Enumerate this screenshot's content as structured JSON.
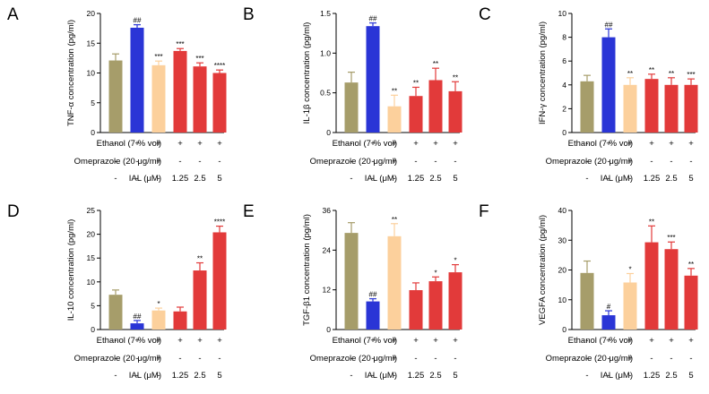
{
  "colors": {
    "bar": [
      "#a69d6a",
      "#2a35d6",
      "#fcd09c",
      "#e23a3a",
      "#e23a3a",
      "#e23a3a"
    ],
    "error_bar": [
      "#a69d6a",
      "#2a35d6",
      "#fcd09c",
      "#e23a3a",
      "#e23a3a",
      "#e23a3a"
    ],
    "axis": "#000000"
  },
  "treatment_table": {
    "rows": [
      {
        "label": "Ethanol (7 % vol)",
        "values": [
          "-",
          "+",
          "+",
          "+",
          "+",
          "+"
        ]
      },
      {
        "label": "Omeprazole (20 μg/ml)",
        "values": [
          "-",
          "-",
          "+",
          "-",
          "-",
          "-"
        ]
      },
      {
        "label": "IAL (μM)",
        "values": [
          "-",
          "-",
          "-",
          "1.25",
          "2.5",
          "5"
        ]
      }
    ]
  },
  "chart_data": [
    {
      "letter": "A",
      "type": "bar",
      "ylabel": "TNF-α concentration (pg/ml)",
      "ylim": [
        0,
        20
      ],
      "yticks": [
        0,
        5,
        10,
        15,
        20
      ],
      "ytick_labels": [
        "0",
        "5",
        "10",
        "15",
        "20"
      ],
      "values": [
        12.1,
        17.6,
        11.3,
        13.7,
        11.1,
        10.0
      ],
      "errors": [
        1.1,
        0.5,
        0.7,
        0.4,
        0.6,
        0.5
      ],
      "significance": [
        "",
        "##",
        "***",
        "***",
        "***",
        "****"
      ]
    },
    {
      "letter": "B",
      "type": "bar",
      "ylabel": "IL-1β concentration (pg/ml)",
      "ylim": [
        0,
        1.5
      ],
      "yticks": [
        0,
        0.5,
        1.0,
        1.5
      ],
      "ytick_labels": [
        "0",
        "0.5",
        "1.0",
        "1.5"
      ],
      "values": [
        0.63,
        1.34,
        0.33,
        0.46,
        0.66,
        0.52
      ],
      "errors": [
        0.13,
        0.04,
        0.14,
        0.11,
        0.15,
        0.12
      ],
      "significance": [
        "",
        "##",
        "**",
        "**",
        "**",
        "**"
      ]
    },
    {
      "letter": "C",
      "type": "bar",
      "ylabel": "IFN-γ concentration (pg/ml)",
      "ylim": [
        0,
        10
      ],
      "yticks": [
        0,
        2,
        4,
        6,
        8,
        10
      ],
      "ytick_labels": [
        "0",
        "2",
        "4",
        "6",
        "8",
        "10"
      ],
      "values": [
        4.3,
        8.0,
        4.0,
        4.5,
        4.0,
        4.0
      ],
      "errors": [
        0.5,
        0.7,
        0.6,
        0.4,
        0.6,
        0.5
      ],
      "significance": [
        "",
        "##",
        "**",
        "**",
        "**",
        "***"
      ]
    },
    {
      "letter": "D",
      "type": "bar",
      "ylabel": "IL-10 concentration (pg/ml)",
      "ylim": [
        0,
        25
      ],
      "yticks": [
        0,
        5,
        10,
        15,
        20,
        25
      ],
      "ytick_labels": [
        "0",
        "5",
        "10",
        "15",
        "20",
        "25"
      ],
      "values": [
        7.3,
        1.3,
        4.0,
        3.8,
        12.4,
        20.4
      ],
      "errors": [
        1.0,
        0.6,
        0.5,
        0.9,
        1.6,
        1.3
      ],
      "significance": [
        "",
        "##",
        "*",
        "",
        "**",
        "****"
      ]
    },
    {
      "letter": "E",
      "type": "bar",
      "ylabel": "TGF-β1 concentration (pg/ml)",
      "ylim": [
        0,
        36
      ],
      "yticks": [
        0,
        12,
        24,
        36
      ],
      "ytick_labels": [
        "0",
        "12",
        "24",
        "36"
      ],
      "values": [
        29.2,
        8.5,
        28.2,
        11.9,
        14.6,
        17.3
      ],
      "errors": [
        3.1,
        0.8,
        3.8,
        2.2,
        1.3,
        2.3
      ],
      "significance": [
        "",
        "##",
        "**",
        "",
        "*",
        "*"
      ]
    },
    {
      "letter": "F",
      "type": "bar",
      "ylabel": "VEGFA concentration (pg/ml)",
      "ylim": [
        0,
        40
      ],
      "yticks": [
        0,
        10,
        20,
        30,
        40
      ],
      "ytick_labels": [
        "0",
        "10",
        "20",
        "30",
        "40"
      ],
      "values": [
        19.0,
        4.8,
        15.8,
        29.3,
        27.0,
        18.1
      ],
      "errors": [
        4.0,
        1.5,
        3.0,
        5.5,
        2.4,
        2.4
      ],
      "significance": [
        "",
        "#",
        "*",
        "**",
        "***",
        "**"
      ]
    }
  ]
}
